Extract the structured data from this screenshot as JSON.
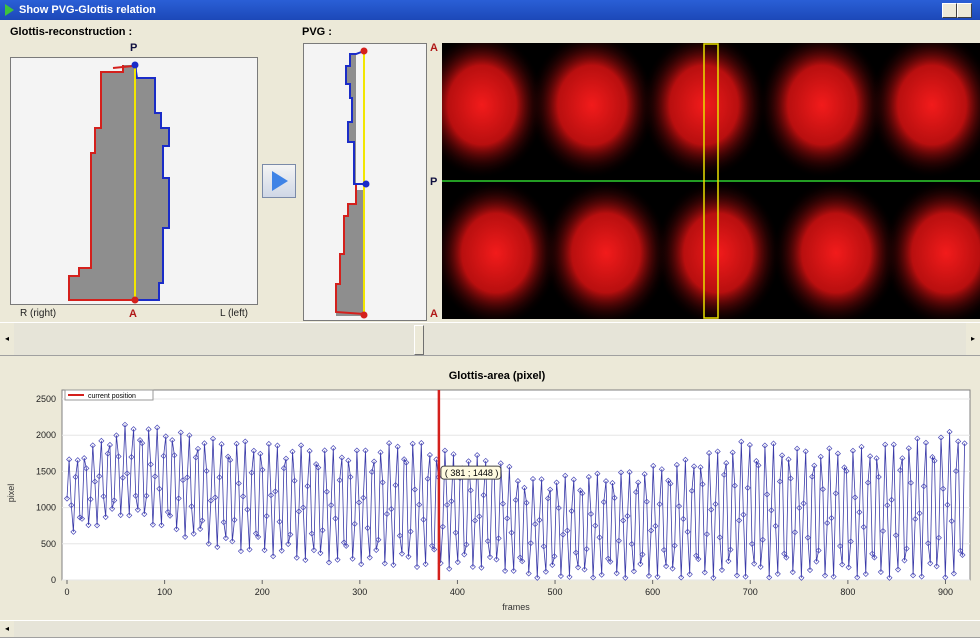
{
  "window": {
    "title": "Show PVG-Glottis relation"
  },
  "glottis": {
    "label": "Glottis-reconstruction :",
    "top_marker": "P",
    "bottom_marker": "A",
    "right_label": "R (right)",
    "left_label": "L (left)"
  },
  "pvg": {
    "label": "PVG :",
    "marker_top": "A",
    "marker_mid": "P",
    "marker_bottom": "A"
  },
  "play_button": {
    "icon": "play-icon"
  },
  "colors": {
    "red": "#d4201c",
    "blue": "#1a2cc8",
    "gray": "#8e8e8e",
    "yellow": "#f2e600",
    "green": "#2fcf2f",
    "series": "#3a3aa8"
  },
  "chart_data": {
    "type": "line",
    "title": "Glottis-area (pixel)",
    "xlabel": "frames",
    "ylabel": "pixel",
    "xlim": [
      0,
      920
    ],
    "ylim": [
      0,
      2500
    ],
    "xticks": [
      "0",
      "100",
      "200",
      "300",
      "400",
      "500",
      "600",
      "700",
      "800",
      "900"
    ],
    "yticks": [
      "0",
      "500",
      "1000",
      "1500",
      "2000",
      "2500"
    ],
    "legend": "current position",
    "legend_position": "top-left",
    "cursor": {
      "x": 381,
      "y": 1448,
      "label": "( 381 ; 1448 )"
    },
    "series": [
      {
        "period_frames": 8.2,
        "envelope_x": [
          0,
          60,
          100,
          150,
          200,
          250,
          300,
          350,
          400,
          440,
          470,
          520,
          570,
          630,
          700,
          760,
          820,
          870,
          920
        ],
        "max": [
          1650,
          2150,
          2100,
          1950,
          1900,
          1850,
          1800,
          1950,
          1750,
          1700,
          1400,
          1450,
          1500,
          1650,
          1950,
          1800,
          1850,
          1950,
          2100
        ],
        "min": [
          600,
          900,
          700,
          450,
          350,
          250,
          220,
          180,
          150,
          160,
          30,
          30,
          30,
          30,
          30,
          30,
          30,
          30,
          30
        ]
      }
    ]
  }
}
